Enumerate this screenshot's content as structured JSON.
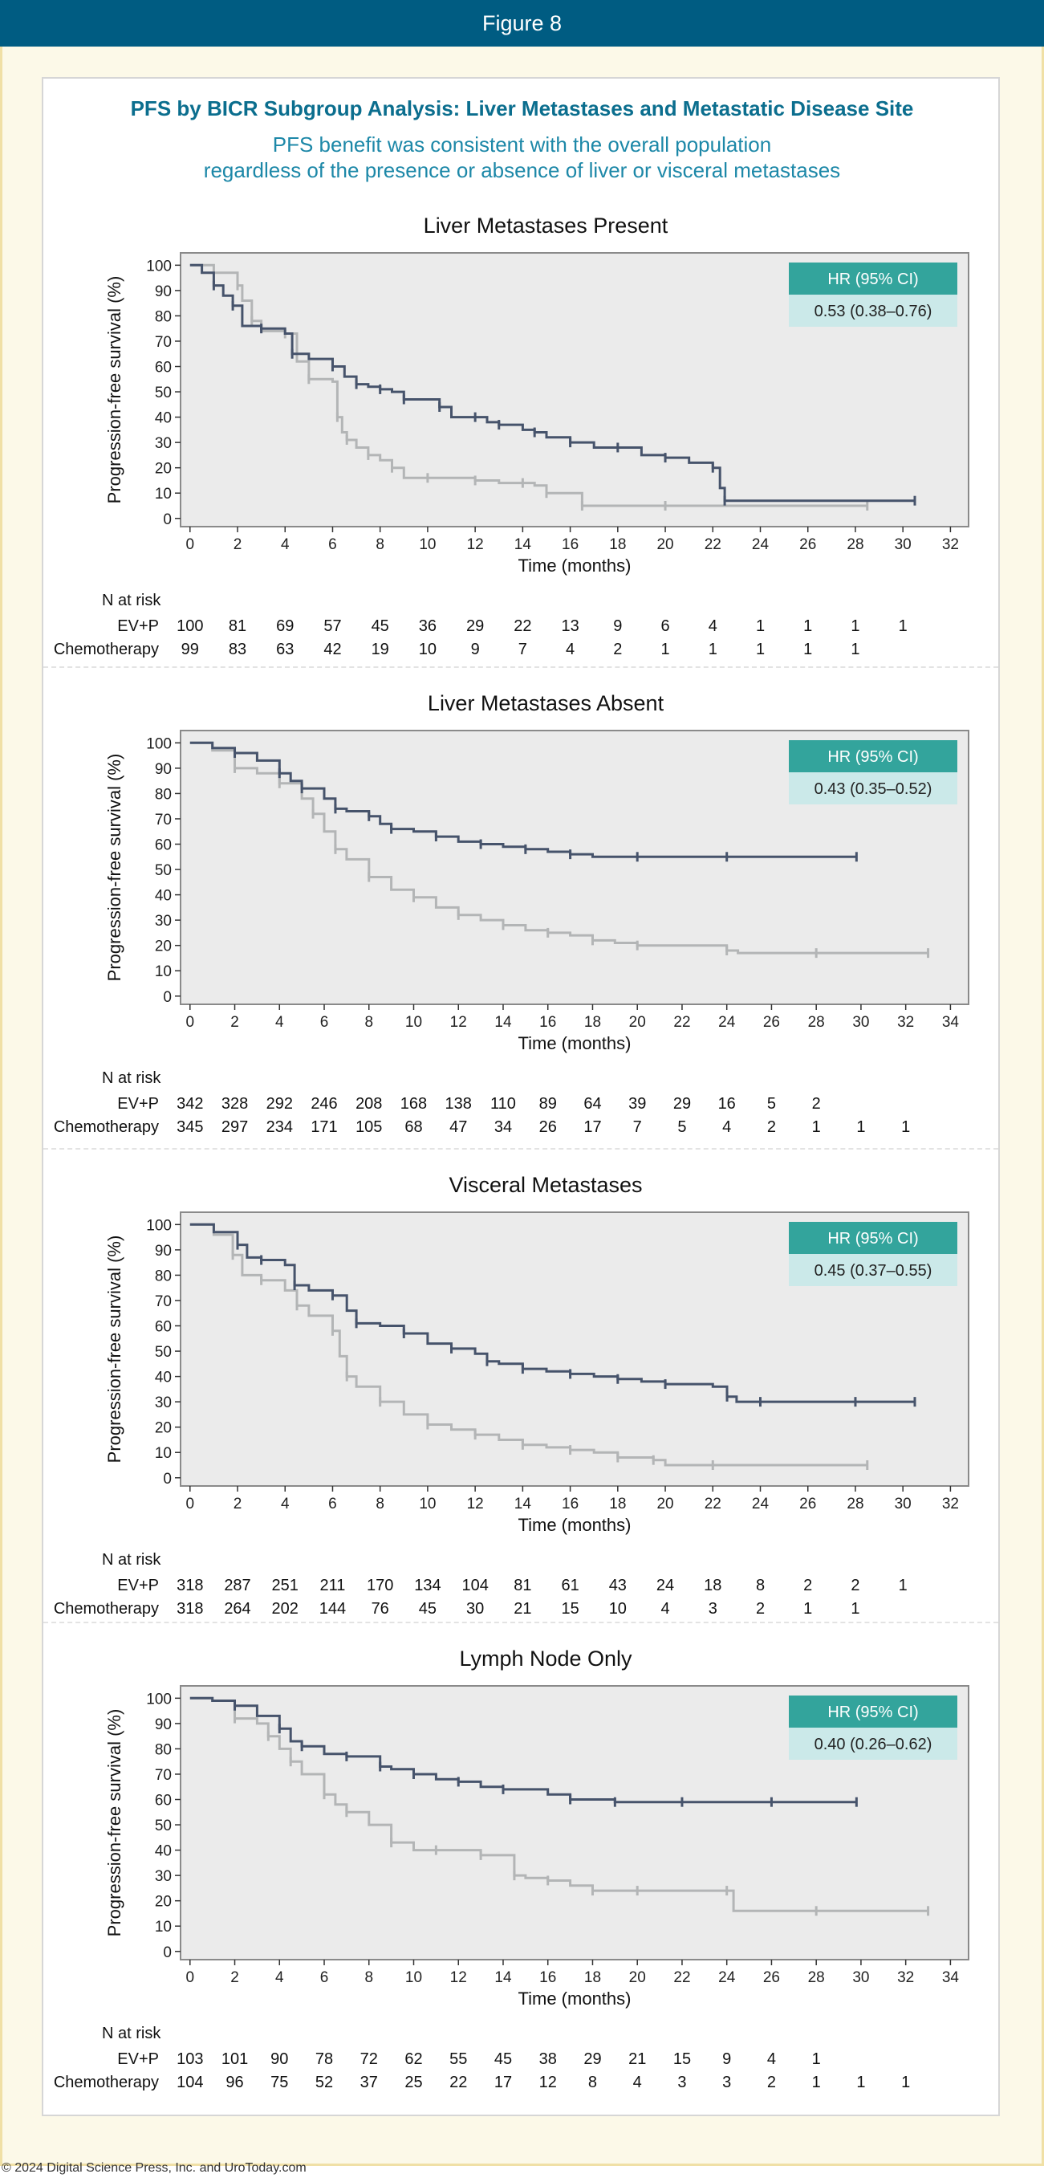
{
  "header": {
    "title": "Figure 8"
  },
  "figure": {
    "title": "PFS by BICR Subgroup Analysis: Liver Metastases and Metastatic Disease Site",
    "subtitle_line1": "PFS benefit was consistent with the overall population",
    "subtitle_line2": "regardless of the presence or absence of liver or visceral metastases"
  },
  "footer": {
    "copyright": "© 2024 Digital Science Press, Inc. and UroToday.com"
  },
  "colors": {
    "evp": "#46536b",
    "chemo": "#b3b5b6",
    "hr_header": "#33a49c",
    "hr_value": "#cbe9e9",
    "plot_bg": "#ebebeb"
  },
  "chart_data": [
    {
      "type": "line",
      "title": "Liver Metastases Present",
      "xlabel": "Time (months)",
      "ylabel": "Progression-free survival (%)",
      "xlim": [
        0,
        32
      ],
      "ylim": [
        0,
        100
      ],
      "xticks": [
        0,
        2,
        4,
        6,
        8,
        10,
        12,
        14,
        16,
        18,
        20,
        22,
        24,
        26,
        28,
        30,
        32
      ],
      "yticks": [
        0,
        10,
        20,
        30,
        40,
        50,
        60,
        70,
        80,
        90,
        100
      ],
      "hr": {
        "header": "HR (95% CI)",
        "value": "0.53 (0.38–0.76)"
      },
      "series": [
        {
          "x": [
            0,
            0.5,
            1,
            1.4,
            1.8,
            2.2,
            3,
            4,
            4.3,
            5,
            6,
            6.5,
            7,
            7.5,
            8,
            8.5,
            9,
            10,
            10.5,
            11,
            12,
            12.5,
            13,
            14,
            14.5,
            15,
            16,
            17,
            18,
            19,
            20,
            21,
            22,
            22.3,
            22.5,
            23,
            30.5
          ],
          "y": [
            100,
            97,
            92,
            88,
            84,
            76,
            75,
            73,
            65,
            63,
            60,
            56,
            53,
            52,
            51,
            50,
            47,
            47,
            44,
            40,
            40,
            38,
            37,
            35,
            34,
            32,
            30,
            28,
            28,
            25,
            24,
            22,
            20,
            12,
            7,
            7,
            7
          ]
        },
        {
          "x": [
            0,
            1,
            2,
            2.2,
            2.6,
            3,
            4,
            4.5,
            5,
            6,
            6.2,
            6.4,
            6.6,
            7,
            7.5,
            8,
            8.5,
            9,
            10,
            11,
            12,
            13,
            14,
            14.5,
            15,
            16,
            16.5,
            18,
            20,
            24,
            28.5
          ],
          "y": [
            100,
            97,
            92,
            86,
            78,
            74,
            73,
            62,
            55,
            54,
            40,
            34,
            31,
            28,
            25,
            23,
            20,
            16,
            16,
            16,
            15,
            14,
            14,
            13,
            10,
            10,
            5,
            5,
            5,
            5,
            5
          ]
        }
      ],
      "risk": {
        "label": "N at risk",
        "times": [
          0,
          2,
          4,
          6,
          8,
          10,
          12,
          14,
          16,
          18,
          20,
          22,
          24,
          26,
          28,
          30
        ],
        "rows": [
          {
            "name": "EV+P",
            "values": [
              "100",
              "81",
              "69",
              "57",
              "45",
              "36",
              "29",
              "22",
              "13",
              "9",
              "6",
              "4",
              "1",
              "1",
              "1",
              "1"
            ]
          },
          {
            "name": "Chemotherapy",
            "values": [
              "99",
              "83",
              "63",
              "42",
              "19",
              "10",
              "9",
              "7",
              "4",
              "2",
              "1",
              "1",
              "1",
              "1",
              "1",
              ""
            ]
          }
        ]
      }
    },
    {
      "type": "line",
      "title": "Liver Metastases Absent",
      "xlabel": "Time (months)",
      "ylabel": "Progression-free survival (%)",
      "xlim": [
        0,
        34
      ],
      "ylim": [
        0,
        100
      ],
      "xticks": [
        0,
        2,
        4,
        6,
        8,
        10,
        12,
        14,
        16,
        18,
        20,
        22,
        24,
        26,
        28,
        30,
        32,
        34
      ],
      "yticks": [
        0,
        10,
        20,
        30,
        40,
        50,
        60,
        70,
        80,
        90,
        100
      ],
      "hr": {
        "header": "HR (95% CI)",
        "value": "0.43 (0.35–0.52)"
      },
      "series": [
        {
          "x": [
            0,
            1,
            2,
            3,
            4,
            4.5,
            5,
            6,
            6.5,
            7,
            8,
            8.5,
            9,
            10,
            11,
            12,
            13,
            14,
            15,
            16,
            17,
            18,
            20,
            22,
            24,
            26,
            29.8
          ],
          "y": [
            100,
            98,
            96,
            93,
            88,
            85,
            82,
            78,
            74,
            73,
            71,
            68,
            66,
            65,
            63,
            61,
            60,
            59,
            58,
            57,
            56,
            55,
            55,
            55,
            55,
            55,
            55
          ]
        },
        {
          "x": [
            0,
            1,
            2,
            3,
            4,
            5,
            5.5,
            6,
            6.5,
            7,
            8,
            9,
            10,
            11,
            12,
            13,
            14,
            15,
            16,
            17,
            18,
            19,
            20,
            22,
            24,
            24.5,
            28,
            33
          ],
          "y": [
            100,
            97,
            90,
            88,
            84,
            78,
            72,
            65,
            58,
            54,
            47,
            42,
            39,
            35,
            32,
            30,
            28,
            26,
            25,
            24,
            22,
            21,
            20,
            20,
            18,
            17,
            17,
            17
          ]
        }
      ],
      "risk": {
        "label": "N at risk",
        "times": [
          0,
          2,
          4,
          6,
          8,
          10,
          12,
          14,
          16,
          18,
          20,
          22,
          24,
          26,
          28,
          30,
          32
        ],
        "rows": [
          {
            "name": "EV+P",
            "values": [
              "342",
              "328",
              "292",
              "246",
              "208",
              "168",
              "138",
              "110",
              "89",
              "64",
              "39",
              "29",
              "16",
              "5",
              "2",
              "",
              ""
            ]
          },
          {
            "name": "Chemotherapy",
            "values": [
              "345",
              "297",
              "234",
              "171",
              "105",
              "68",
              "47",
              "34",
              "26",
              "17",
              "7",
              "5",
              "4",
              "2",
              "1",
              "1",
              "1"
            ]
          }
        ]
      }
    },
    {
      "type": "line",
      "title": "Visceral Metastases",
      "xlabel": "Time (months)",
      "ylabel": "Progression-free survival (%)",
      "xlim": [
        0,
        32
      ],
      "ylim": [
        0,
        100
      ],
      "xticks": [
        0,
        2,
        4,
        6,
        8,
        10,
        12,
        14,
        16,
        18,
        20,
        22,
        24,
        26,
        28,
        30,
        32
      ],
      "yticks": [
        0,
        10,
        20,
        30,
        40,
        50,
        60,
        70,
        80,
        90,
        100
      ],
      "hr": {
        "header": "HR (95% CI)",
        "value": "0.45 (0.37–0.55)"
      },
      "series": [
        {
          "x": [
            0,
            1,
            2,
            2.4,
            3,
            4,
            4.4,
            5,
            6,
            6.6,
            7,
            8,
            9,
            10,
            11,
            12,
            12.5,
            13,
            14,
            15,
            16,
            17,
            18,
            19,
            20,
            22,
            22.6,
            23,
            24,
            26,
            28,
            30.5
          ],
          "y": [
            100,
            97,
            92,
            87,
            86,
            84,
            76,
            74,
            72,
            66,
            61,
            60,
            57,
            53,
            51,
            49,
            46,
            45,
            43,
            42,
            41,
            40,
            39,
            38,
            37,
            36,
            32,
            30,
            30,
            30,
            30,
            30
          ]
        },
        {
          "x": [
            0,
            1,
            1.8,
            2.2,
            3,
            4,
            4.5,
            5,
            6,
            6.3,
            6.6,
            7,
            8,
            9,
            10,
            11,
            12,
            13,
            14,
            15,
            16,
            17,
            18,
            19,
            19.5,
            20,
            22,
            24,
            28.5
          ],
          "y": [
            100,
            96,
            88,
            80,
            78,
            74,
            68,
            64,
            58,
            48,
            40,
            36,
            30,
            25,
            21,
            19,
            17,
            15,
            13,
            12,
            11,
            10,
            8,
            8,
            7,
            5,
            5,
            5,
            5
          ]
        }
      ],
      "risk": {
        "label": "N at risk",
        "times": [
          0,
          2,
          4,
          6,
          8,
          10,
          12,
          14,
          16,
          18,
          20,
          22,
          24,
          26,
          28,
          30
        ],
        "rows": [
          {
            "name": "EV+P",
            "values": [
              "318",
              "287",
              "251",
              "211",
              "170",
              "134",
              "104",
              "81",
              "61",
              "43",
              "24",
              "18",
              "8",
              "2",
              "2",
              "1"
            ]
          },
          {
            "name": "Chemotherapy",
            "values": [
              "318",
              "264",
              "202",
              "144",
              "76",
              "45",
              "30",
              "21",
              "15",
              "10",
              "4",
              "3",
              "2",
              "1",
              "1",
              ""
            ]
          }
        ]
      }
    },
    {
      "type": "line",
      "title": "Lymph Node Only",
      "xlabel": "Time (months)",
      "ylabel": "Progression-free survival (%)",
      "xlim": [
        0,
        34
      ],
      "ylim": [
        0,
        100
      ],
      "xticks": [
        0,
        2,
        4,
        6,
        8,
        10,
        12,
        14,
        16,
        18,
        20,
        22,
        24,
        26,
        28,
        30,
        32,
        34
      ],
      "yticks": [
        0,
        10,
        20,
        30,
        40,
        50,
        60,
        70,
        80,
        90,
        100
      ],
      "hr": {
        "header": "HR (95% CI)",
        "value": "0.40 (0.26–0.62)"
      },
      "series": [
        {
          "x": [
            0,
            1,
            2,
            3,
            4,
            4.5,
            5,
            6,
            7,
            8,
            8.5,
            9,
            10,
            11,
            12,
            13,
            14,
            16,
            17,
            18,
            19,
            20,
            22,
            24,
            26,
            29.8
          ],
          "y": [
            100,
            99,
            97,
            93,
            88,
            83,
            81,
            78,
            77,
            77,
            73,
            72,
            70,
            68,
            67,
            65,
            64,
            62,
            60,
            60,
            59,
            59,
            59,
            59,
            59,
            59
          ]
        },
        {
          "x": [
            0,
            1,
            2,
            3,
            3.5,
            4,
            4.5,
            5,
            6,
            6.5,
            7,
            8,
            9,
            10,
            11,
            12,
            13,
            14,
            14.5,
            15,
            16,
            17,
            18,
            19,
            20,
            22,
            24,
            24.3,
            28,
            33
          ],
          "y": [
            100,
            99,
            92,
            90,
            85,
            80,
            75,
            70,
            62,
            58,
            55,
            50,
            43,
            40,
            40,
            40,
            38,
            38,
            30,
            29,
            28,
            26,
            24,
            24,
            24,
            24,
            24,
            16,
            16,
            16
          ]
        }
      ],
      "risk": {
        "label": "N at risk",
        "times": [
          0,
          2,
          4,
          6,
          8,
          10,
          12,
          14,
          16,
          18,
          20,
          22,
          24,
          26,
          28,
          30,
          32
        ],
        "rows": [
          {
            "name": "EV+P",
            "values": [
              "103",
              "101",
              "90",
              "78",
              "72",
              "62",
              "55",
              "45",
              "38",
              "29",
              "21",
              "15",
              "9",
              "4",
              "1",
              "",
              ""
            ]
          },
          {
            "name": "Chemotherapy",
            "values": [
              "104",
              "96",
              "75",
              "52",
              "37",
              "25",
              "22",
              "17",
              "12",
              "8",
              "4",
              "3",
              "3",
              "2",
              "1",
              "1",
              "1"
            ]
          }
        ]
      }
    }
  ]
}
